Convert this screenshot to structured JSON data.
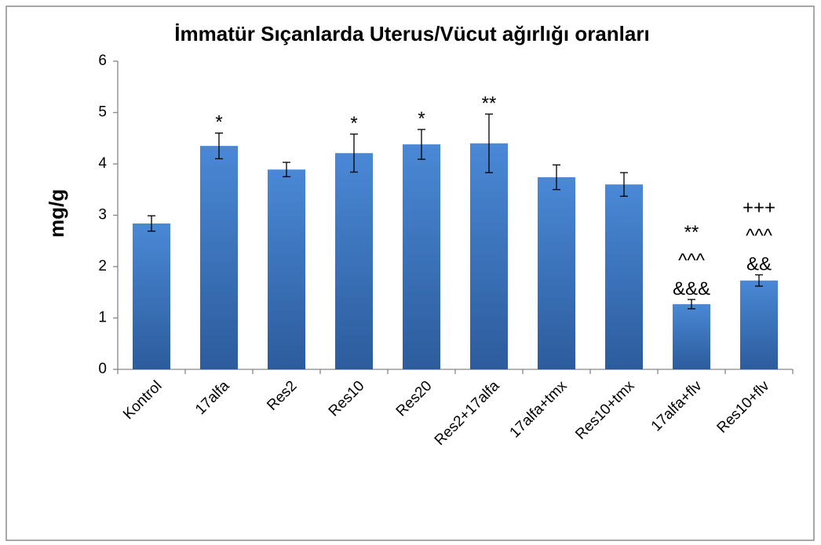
{
  "chart_data": {
    "type": "bar",
    "title": "İmmatür Sıçanlarda Uterus/Vücut ağırlığı oranları",
    "ylabel": "mg/g",
    "categories": [
      "Kontrol",
      "17alfa",
      "Res2",
      "Res10",
      "Res20",
      "Res2+17alfa",
      "17alfa+tmx",
      "Res10+tmx",
      "17alfa+flv",
      "Res10+flv"
    ],
    "values": [
      2.84,
      4.35,
      3.89,
      4.21,
      4.38,
      4.4,
      3.74,
      3.6,
      1.27,
      1.73
    ],
    "errors": [
      0.15,
      0.25,
      0.14,
      0.37,
      0.29,
      0.57,
      0.24,
      0.23,
      0.09,
      0.11
    ],
    "annotations": [
      null,
      [
        "*"
      ],
      null,
      [
        "*"
      ],
      [
        "*"
      ],
      [
        "**"
      ],
      null,
      null,
      [
        "**",
        "^^^",
        "&&&"
      ],
      [
        "+++",
        "^^^",
        "&&"
      ]
    ],
    "color": "#3a78c6",
    "ylim": [
      0,
      6
    ],
    "yticks": [
      0,
      1,
      2,
      3,
      4,
      5,
      6
    ],
    "grid": false
  }
}
